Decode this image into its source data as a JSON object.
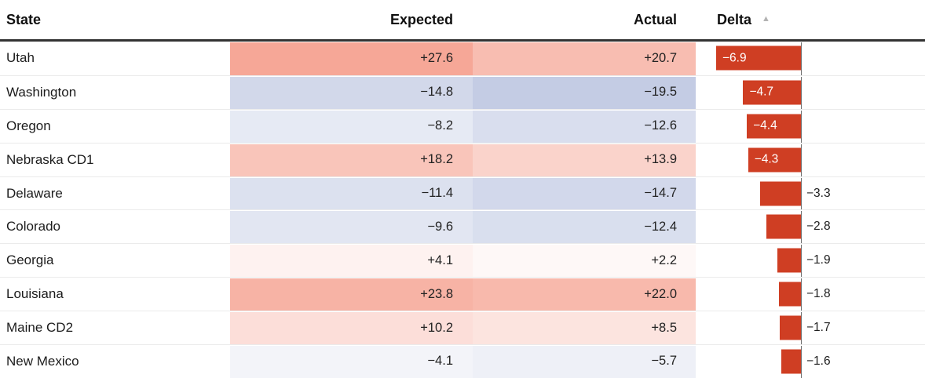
{
  "header": {
    "columns": [
      {
        "id": "state",
        "label": "State"
      },
      {
        "id": "expected",
        "label": "Expected"
      },
      {
        "id": "actual",
        "label": "Actual"
      },
      {
        "id": "delta",
        "label": "Delta"
      }
    ],
    "sort": {
      "column": "Delta",
      "direction": "ascending",
      "icon_glyph": "▲"
    }
  },
  "rows": [
    {
      "state": "Utah",
      "expected": "+27.6",
      "actual": "+20.7",
      "delta": -6.9,
      "delta_label": "−6.9",
      "label_position": "inside",
      "expected_color": "#f6a797",
      "actual_color": "#f8bdb1"
    },
    {
      "state": "Washington",
      "expected": "−14.8",
      "actual": "−19.5",
      "delta": -4.7,
      "delta_label": "−4.7",
      "label_position": "inside",
      "expected_color": "#d2d8ea",
      "actual_color": "#c4cce4"
    },
    {
      "state": "Oregon",
      "expected": "−8.2",
      "actual": "−12.6",
      "delta": -4.4,
      "delta_label": "−4.4",
      "label_position": "inside",
      "expected_color": "#e6eaf4",
      "actual_color": "#d9deee"
    },
    {
      "state": "Nebraska CD1",
      "expected": "+18.2",
      "actual": "+13.9",
      "delta": -4.3,
      "delta_label": "−4.3",
      "label_position": "inside",
      "expected_color": "#f9c5ba",
      "actual_color": "#fad3cb"
    },
    {
      "state": "Delaware",
      "expected": "−11.4",
      "actual": "−14.7",
      "delta": -3.3,
      "delta_label": "−3.3",
      "label_position": "outside",
      "expected_color": "#dce1ef",
      "actual_color": "#d2d8eb"
    },
    {
      "state": "Colorado",
      "expected": "−9.6",
      "actual": "−12.4",
      "delta": -2.8,
      "delta_label": "−2.8",
      "label_position": "outside",
      "expected_color": "#e2e6f2",
      "actual_color": "#d9dfee"
    },
    {
      "state": "Georgia",
      "expected": "+4.1",
      "actual": "+2.2",
      "delta": -1.9,
      "delta_label": "−1.9",
      "label_position": "outside",
      "expected_color": "#fef2f0",
      "actual_color": "#fef8f7"
    },
    {
      "state": "Louisiana",
      "expected": "+23.8",
      "actual": "+22.0",
      "delta": -1.8,
      "delta_label": "−1.8",
      "label_position": "outside",
      "expected_color": "#f7b3a5",
      "actual_color": "#f8b9ac"
    },
    {
      "state": "Maine CD2",
      "expected": "+10.2",
      "actual": "+8.5",
      "delta": -1.7,
      "delta_label": "−1.7",
      "label_position": "outside",
      "expected_color": "#fcded9",
      "actual_color": "#fce4df"
    },
    {
      "state": "New Mexico",
      "expected": "−4.1",
      "actual": "−5.7",
      "delta": -1.6,
      "delta_label": "−1.6",
      "label_position": "outside",
      "expected_color": "#f3f4f9",
      "actual_color": "#eef0f7"
    }
  ],
  "colors": {
    "bar": "#cf3e23",
    "bar_label_inside": "#ffffff",
    "bar_label_outside": "#202020",
    "header_rule": "#333333",
    "row_separator": "#ebebeb",
    "baseline_line": "#6e6e6e",
    "sort_icon": "#b3b3b3",
    "positive_scale_max": "#f6a797",
    "negative_scale_max": "#c4cce4"
  },
  "chart_data": {
    "type": "table",
    "columns": [
      "State",
      "Expected",
      "Actual",
      "Delta"
    ],
    "rows": [
      [
        "Utah",
        27.6,
        20.7,
        -6.9
      ],
      [
        "Washington",
        -14.8,
        -19.5,
        -4.7
      ],
      [
        "Oregon",
        -8.2,
        -12.6,
        -4.4
      ],
      [
        "Nebraska CD1",
        18.2,
        13.9,
        -4.3
      ],
      [
        "Delaware",
        -11.4,
        -14.7,
        -3.3
      ],
      [
        "Colorado",
        -9.6,
        -12.4,
        -2.8
      ],
      [
        "Georgia",
        4.1,
        2.2,
        -1.9
      ],
      [
        "Louisiana",
        23.8,
        22.0,
        -1.8
      ],
      [
        "Maine CD2",
        10.2,
        8.5,
        -1.7
      ],
      [
        "New Mexico",
        -4.1,
        -5.7,
        -1.6
      ]
    ],
    "cell_shading": "diverging heatmap on Expected/Actual: red for positive, blue for negative, intensity proportional to magnitude",
    "delta_column": {
      "type": "bar",
      "baseline": 0,
      "bar_color": "#cf3e23",
      "all_values_negative": true,
      "sorted": "ascending by delta",
      "value_range": [
        -6.9,
        -1.6
      ]
    }
  }
}
